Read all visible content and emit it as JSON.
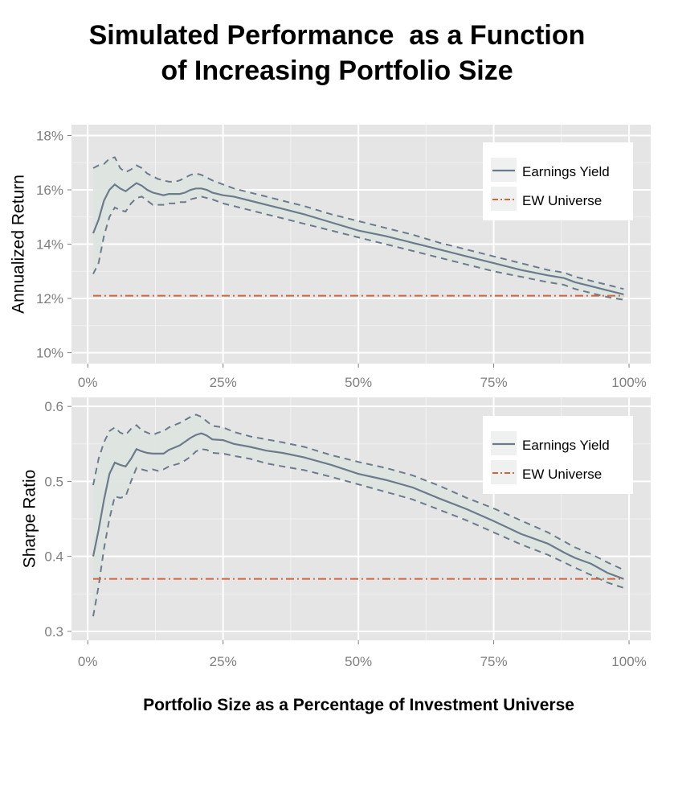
{
  "title_lines": [
    "Simulated Performance  as a Function",
    "of Increasing Portfolio Size"
  ],
  "xlabel": "Portfolio Size as a Percentage of Investment Universe",
  "colors": {
    "panel_bg": "#e5e5e5",
    "grid": "#ffffff",
    "series_line": "#6c7b8b",
    "ribbon": "#dde3df",
    "baseline": "#d0643c"
  },
  "chart_data": [
    {
      "type": "line",
      "ylabel": "Annualized Return",
      "x_ticks": [
        0,
        25,
        50,
        75,
        100
      ],
      "x_tick_labels": [
        "0%",
        "25%",
        "50%",
        "75%",
        "100%"
      ],
      "xlim": [
        -3,
        104
      ],
      "y_ticks": [
        10,
        12,
        14,
        16,
        18
      ],
      "y_tick_labels": [
        "10%",
        "12%",
        "14%",
        "16%",
        "18%"
      ],
      "ylim": [
        9.6,
        18.4
      ],
      "grid": true,
      "legend_position": "top-right",
      "legend": [
        "Earnings Yield",
        "EW Universe"
      ],
      "x": [
        1,
        2,
        3,
        4,
        5,
        6,
        7,
        8,
        9,
        10,
        11,
        12,
        13,
        14,
        15,
        16,
        17,
        18,
        19,
        20,
        21,
        22,
        23,
        25,
        27,
        30,
        33,
        36,
        40,
        45,
        50,
        55,
        60,
        65,
        70,
        75,
        80,
        85,
        88,
        90,
        93,
        96,
        99
      ],
      "series": [
        {
          "name": "Earnings Yield",
          "mean": [
            14.4,
            14.9,
            15.6,
            16.0,
            16.2,
            16.05,
            15.95,
            16.1,
            16.25,
            16.15,
            16.0,
            15.9,
            15.85,
            15.8,
            15.85,
            15.85,
            15.85,
            15.9,
            16.0,
            16.05,
            16.05,
            16.0,
            15.9,
            15.8,
            15.75,
            15.6,
            15.45,
            15.3,
            15.1,
            14.8,
            14.5,
            14.3,
            14.05,
            13.8,
            13.55,
            13.3,
            13.05,
            12.85,
            12.75,
            12.6,
            12.45,
            12.3,
            12.15
          ],
          "upper": [
            16.8,
            16.9,
            16.95,
            17.15,
            17.2,
            16.8,
            16.65,
            16.75,
            16.9,
            16.8,
            16.6,
            16.5,
            16.4,
            16.35,
            16.3,
            16.3,
            16.35,
            16.45,
            16.55,
            16.6,
            16.55,
            16.45,
            16.35,
            16.2,
            16.05,
            15.9,
            15.75,
            15.6,
            15.4,
            15.1,
            14.85,
            14.6,
            14.35,
            14.05,
            13.8,
            13.55,
            13.3,
            13.05,
            12.95,
            12.8,
            12.65,
            12.5,
            12.35
          ],
          "lower": [
            12.9,
            13.3,
            14.3,
            15.0,
            15.35,
            15.25,
            15.2,
            15.5,
            15.7,
            15.75,
            15.6,
            15.45,
            15.45,
            15.45,
            15.5,
            15.5,
            15.55,
            15.55,
            15.65,
            15.7,
            15.75,
            15.7,
            15.65,
            15.5,
            15.4,
            15.25,
            15.1,
            14.95,
            14.75,
            14.5,
            14.25,
            14.0,
            13.75,
            13.5,
            13.25,
            13.0,
            12.8,
            12.6,
            12.5,
            12.35,
            12.2,
            12.05,
            11.95
          ]
        },
        {
          "name": "EW Universe",
          "x": [
            1,
            99
          ],
          "values": [
            12.1,
            12.1
          ]
        }
      ]
    },
    {
      "type": "line",
      "ylabel": "Sharpe Ratio",
      "x_ticks": [
        0,
        25,
        50,
        75,
        100
      ],
      "x_tick_labels": [
        "0%",
        "25%",
        "50%",
        "75%",
        "100%"
      ],
      "xlim": [
        -3,
        104
      ],
      "y_ticks": [
        0.3,
        0.4,
        0.5,
        0.6
      ],
      "y_tick_labels": [
        "0.3",
        "0.4",
        "0.5",
        "0.6"
      ],
      "ylim": [
        0.288,
        0.612
      ],
      "grid": true,
      "legend_position": "top-right",
      "legend": [
        "Earnings Yield",
        "EW Universe"
      ],
      "x": [
        1,
        2,
        3,
        4,
        5,
        6,
        7,
        8,
        9,
        10,
        11,
        12,
        13,
        14,
        15,
        16,
        17,
        18,
        19,
        20,
        21,
        22,
        23,
        25,
        27,
        30,
        33,
        36,
        40,
        45,
        50,
        55,
        60,
        65,
        70,
        75,
        80,
        85,
        88,
        90,
        93,
        96,
        99
      ],
      "series": [
        {
          "name": "Earnings Yield",
          "mean": [
            0.4,
            0.435,
            0.475,
            0.51,
            0.525,
            0.522,
            0.52,
            0.53,
            0.543,
            0.54,
            0.538,
            0.537,
            0.537,
            0.537,
            0.542,
            0.545,
            0.548,
            0.553,
            0.558,
            0.562,
            0.564,
            0.561,
            0.556,
            0.555,
            0.55,
            0.546,
            0.541,
            0.538,
            0.532,
            0.522,
            0.51,
            0.502,
            0.492,
            0.477,
            0.463,
            0.447,
            0.43,
            0.417,
            0.405,
            0.398,
            0.39,
            0.378,
            0.37
          ],
          "upper": [
            0.495,
            0.53,
            0.552,
            0.567,
            0.572,
            0.565,
            0.562,
            0.57,
            0.575,
            0.568,
            0.565,
            0.562,
            0.565,
            0.567,
            0.572,
            0.575,
            0.578,
            0.582,
            0.586,
            0.589,
            0.586,
            0.58,
            0.574,
            0.572,
            0.566,
            0.56,
            0.556,
            0.552,
            0.546,
            0.535,
            0.526,
            0.518,
            0.508,
            0.494,
            0.478,
            0.464,
            0.448,
            0.432,
            0.42,
            0.412,
            0.403,
            0.392,
            0.382
          ],
          "lower": [
            0.32,
            0.36,
            0.41,
            0.45,
            0.48,
            0.478,
            0.48,
            0.5,
            0.518,
            0.516,
            0.514,
            0.516,
            0.514,
            0.516,
            0.52,
            0.522,
            0.524,
            0.528,
            0.533,
            0.54,
            0.543,
            0.542,
            0.538,
            0.537,
            0.534,
            0.53,
            0.524,
            0.52,
            0.515,
            0.506,
            0.496,
            0.486,
            0.476,
            0.462,
            0.448,
            0.432,
            0.416,
            0.402,
            0.392,
            0.385,
            0.375,
            0.365,
            0.358
          ]
        },
        {
          "name": "EW Universe",
          "x": [
            1,
            99
          ],
          "values": [
            0.37,
            0.37
          ]
        }
      ]
    }
  ]
}
